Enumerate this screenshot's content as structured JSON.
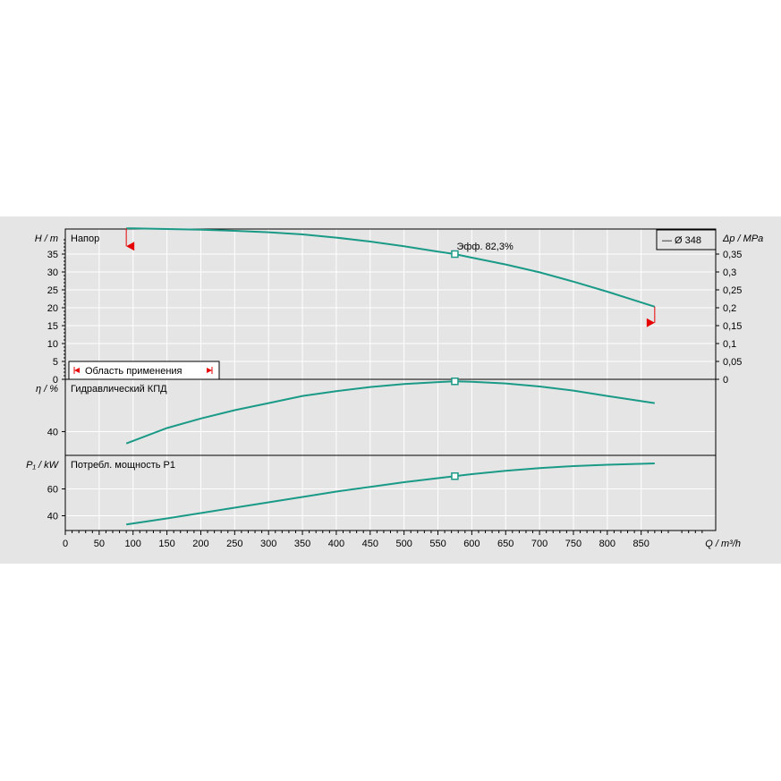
{
  "chart_data": [
    {
      "type": "line",
      "panel": "head",
      "ylabel": "H / m",
      "ylabel_right": "Δp / MPa",
      "title": "Напор",
      "ylim": [
        0,
        42
      ],
      "y_ticks": [
        "0",
        "5",
        "10",
        "15",
        "20",
        "25",
        "30",
        "35"
      ],
      "y_ticks_right": [
        "0",
        "0,05",
        "0,1",
        "0,15",
        "0,2",
        "0,25",
        "0,3",
        "0,35"
      ],
      "series": [
        {
          "name": "Ø 348",
          "x": [
            90,
            100,
            150,
            200,
            250,
            300,
            350,
            400,
            450,
            500,
            550,
            575,
            600,
            650,
            700,
            750,
            800,
            870
          ],
          "y": [
            42.2,
            42.2,
            42.0,
            41.8,
            41.5,
            41.1,
            40.5,
            39.6,
            38.5,
            37.2,
            35.7,
            35.0,
            34.0,
            32.1,
            29.9,
            27.3,
            24.5,
            20.3
          ]
        }
      ],
      "annotation": "Эфф.  82,3%",
      "operating_point": {
        "x": 575,
        "y": 35.0
      },
      "legend": "— Ø 348",
      "legend_position": "top-right",
      "range_label": "Область применения",
      "range_markers": [
        {
          "x": 90,
          "direction": "left"
        },
        {
          "x": 870,
          "direction": "right"
        }
      ]
    },
    {
      "type": "line",
      "panel": "efficiency",
      "ylabel": "η / %",
      "title": "Гидравлический КПД",
      "ylim": [
        20,
        84
      ],
      "y_ticks": [
        "40"
      ],
      "series": [
        {
          "x": [
            90,
            150,
            200,
            250,
            300,
            350,
            400,
            450,
            500,
            550,
            575,
            600,
            650,
            700,
            750,
            800,
            870
          ],
          "y": [
            30,
            43,
            51,
            58,
            64,
            70,
            74,
            77.5,
            80,
            81.7,
            82.3,
            82,
            80.5,
            78,
            74.5,
            70,
            64
          ]
        }
      ],
      "operating_point": {
        "x": 575,
        "y": 82.3
      }
    },
    {
      "type": "line",
      "panel": "power",
      "ylabel": "P₁ / kW",
      "title": "Потребл. мощность Р1",
      "ylim": [
        29,
        85
      ],
      "y_ticks": [
        "40",
        "60"
      ],
      "series": [
        {
          "x": [
            90,
            150,
            200,
            250,
            300,
            350,
            400,
            450,
            500,
            550,
            575,
            600,
            650,
            700,
            750,
            800,
            870
          ],
          "y": [
            33.5,
            38,
            42,
            46,
            50,
            54,
            58,
            61.5,
            65,
            68,
            69.5,
            71,
            73.5,
            75.5,
            77,
            78,
            79
          ]
        }
      ],
      "operating_point": {
        "x": 575,
        "y": 69.5
      }
    }
  ],
  "x_axis": {
    "label": "Q / m³/h",
    "xlim": [
      0,
      960
    ],
    "ticks": [
      "0",
      "50",
      "100",
      "150",
      "200",
      "250",
      "300",
      "350",
      "400",
      "450",
      "500",
      "550",
      "600",
      "650",
      "700",
      "750",
      "800",
      "850"
    ]
  },
  "colors": {
    "curve": "#1a9a87",
    "marker": "#e60000",
    "background": "#e5e5e5",
    "grid": "#ffffff"
  }
}
